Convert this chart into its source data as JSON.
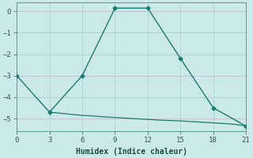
{
  "xlabel": "Humidex (Indice chaleur)",
  "background_color": "#cce9e9",
  "line_color": "#1a7a6e",
  "xlim": [
    0,
    21
  ],
  "ylim": [
    -5.6,
    0.4
  ],
  "xticks": [
    0,
    3,
    6,
    9,
    12,
    15,
    18,
    21
  ],
  "yticks": [
    0,
    -1,
    -2,
    -3,
    -4,
    -5
  ],
  "series1_x": [
    0,
    3,
    6,
    9,
    12,
    15,
    18,
    21
  ],
  "series1_y": [
    -3.0,
    -4.7,
    -3.0,
    0.15,
    0.15,
    -2.2,
    -4.5,
    -5.35
  ],
  "series2_x": [
    3,
    4,
    5,
    6,
    7,
    8,
    9,
    10,
    11,
    12,
    13,
    14,
    15,
    16,
    17,
    18,
    19,
    20,
    21
  ],
  "series2_y": [
    -4.7,
    -4.75,
    -4.8,
    -4.85,
    -4.88,
    -4.92,
    -4.95,
    -4.98,
    -5.01,
    -5.04,
    -5.07,
    -5.09,
    -5.11,
    -5.14,
    -5.17,
    -5.2,
    -5.23,
    -5.27,
    -5.35
  ]
}
